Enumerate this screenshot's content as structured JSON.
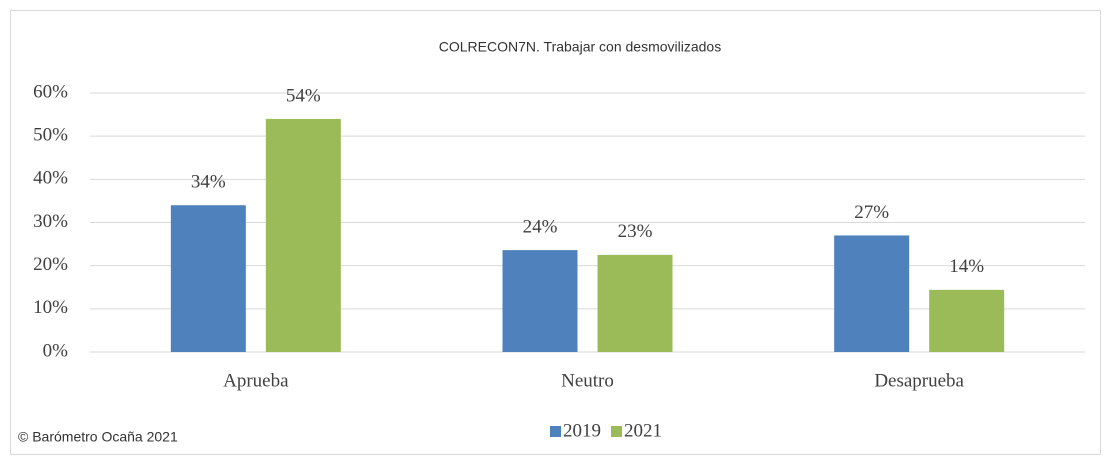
{
  "chart_data": {
    "type": "bar",
    "title": "COLRECON7N. Trabajar con desmovilizados",
    "categories": [
      "Aprueba",
      "Neutro",
      "Desaprueba"
    ],
    "series": [
      {
        "name": "2019",
        "color": "#4f81bd",
        "values": [
          34,
          23.6,
          27
        ],
        "value_labels": [
          "34%",
          "24%",
          "27%"
        ]
      },
      {
        "name": "2021",
        "color": "#9bbb59",
        "values": [
          54,
          22.5,
          14.4
        ],
        "value_labels": [
          "54%",
          "23%",
          "14%"
        ]
      }
    ],
    "ylim": [
      0,
      60
    ],
    "yticks": [
      {
        "value": 0,
        "label": "0%"
      },
      {
        "value": 10,
        "label": "10%"
      },
      {
        "value": 20,
        "label": "20%"
      },
      {
        "value": 30,
        "label": "30%"
      },
      {
        "value": 40,
        "label": "40%"
      },
      {
        "value": 50,
        "label": "50%"
      },
      {
        "value": 60,
        "label": "60%"
      }
    ],
    "grid": true,
    "legend": "bottom",
    "source": "© Barómetro Ocaña 2021"
  }
}
